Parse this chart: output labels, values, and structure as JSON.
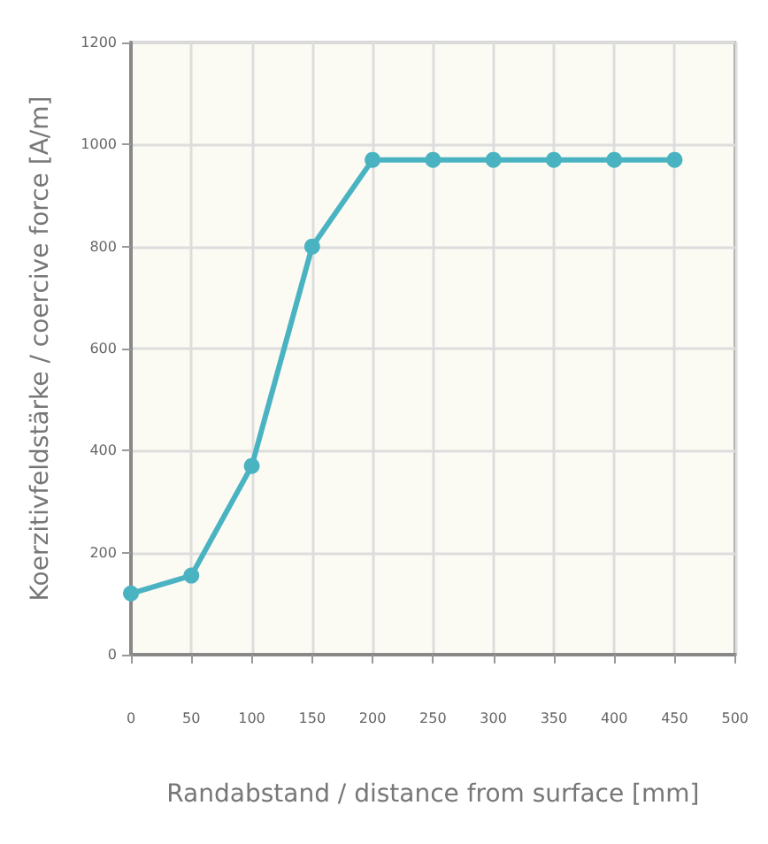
{
  "chart_data": {
    "type": "line",
    "xlabel": "Randabstand / distance from surface [mm]",
    "ylabel": "Koerzitivfeldstärke / coercive force [A/m]",
    "x": [
      0,
      50,
      100,
      150,
      200,
      250,
      300,
      350,
      400,
      450
    ],
    "series": [
      {
        "color": "#4ab3c2",
        "values": [
          120,
          155,
          370,
          800,
          970,
          970,
          970,
          970,
          970,
          970
        ]
      }
    ],
    "xlim": [
      0,
      500
    ],
    "xticks": [
      0,
      50,
      100,
      150,
      200,
      250,
      300,
      350,
      400,
      450,
      500
    ],
    "ylim": [
      0,
      1200
    ],
    "yticks": [
      0,
      200,
      400,
      600,
      800,
      1000,
      1200
    ],
    "grid": true,
    "marker": "circle",
    "line_style": "solid"
  }
}
